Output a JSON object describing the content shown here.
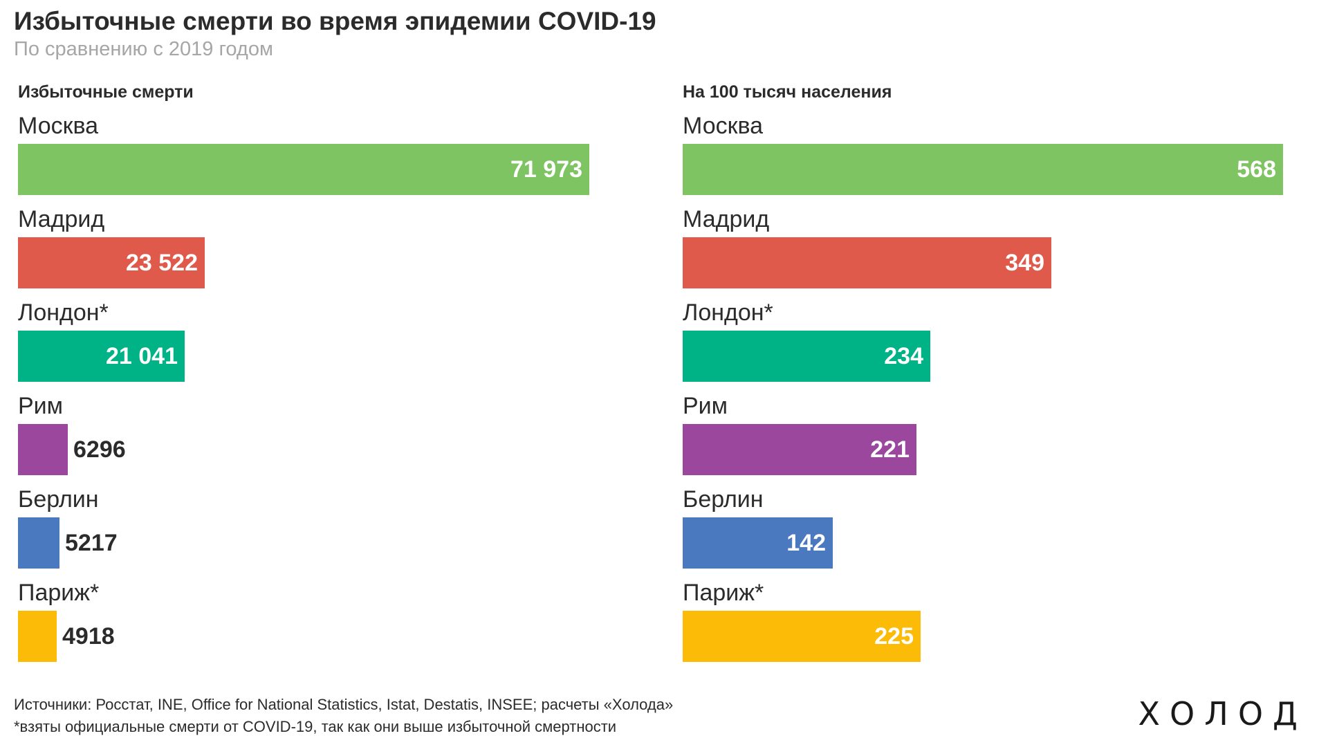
{
  "title": "Избыточные смерти во время эпидемии COVID-19",
  "subtitle": "По сравнению с 2019 годом",
  "source": "Источники: Росстат, INE, Office for National Statistics, Istat, Destatis, INSEE; расчеты «Холода»",
  "footnote": "*взяты официальные смерти от COVID-19, так как они выше избыточной смертности",
  "logo": "ХОЛОД",
  "chart_data": [
    {
      "type": "bar",
      "orientation": "horizontal",
      "heading": "Избыточные смерти",
      "categories": [
        "Москва",
        "Мадрид",
        "Лондон*",
        "Рим",
        "Берлин",
        "Париж*"
      ],
      "values": [
        71973,
        23522,
        21041,
        6296,
        5217,
        4918
      ],
      "value_labels": [
        "71 973",
        "23 522",
        "21 041",
        "6296",
        "5217",
        "4918"
      ],
      "colors": [
        "#7fc463",
        "#e05a4b",
        "#00b386",
        "#9a479d",
        "#4a79c0",
        "#fcbb06"
      ],
      "xlim": [
        0,
        71973
      ],
      "grid": false,
      "legend": "none"
    },
    {
      "type": "bar",
      "orientation": "horizontal",
      "heading": "На 100 тысяч населения",
      "categories": [
        "Москва",
        "Мадрид",
        "Лондон*",
        "Рим",
        "Берлин",
        "Париж*"
      ],
      "values": [
        568,
        349,
        234,
        221,
        142,
        225
      ],
      "value_labels": [
        "568",
        "349",
        "234",
        "221",
        "142",
        "225"
      ],
      "colors": [
        "#7fc463",
        "#e05a4b",
        "#00b386",
        "#9a479d",
        "#4a79c0",
        "#fcbb06"
      ],
      "xlim": [
        0,
        568
      ],
      "grid": false,
      "legend": "none"
    }
  ]
}
